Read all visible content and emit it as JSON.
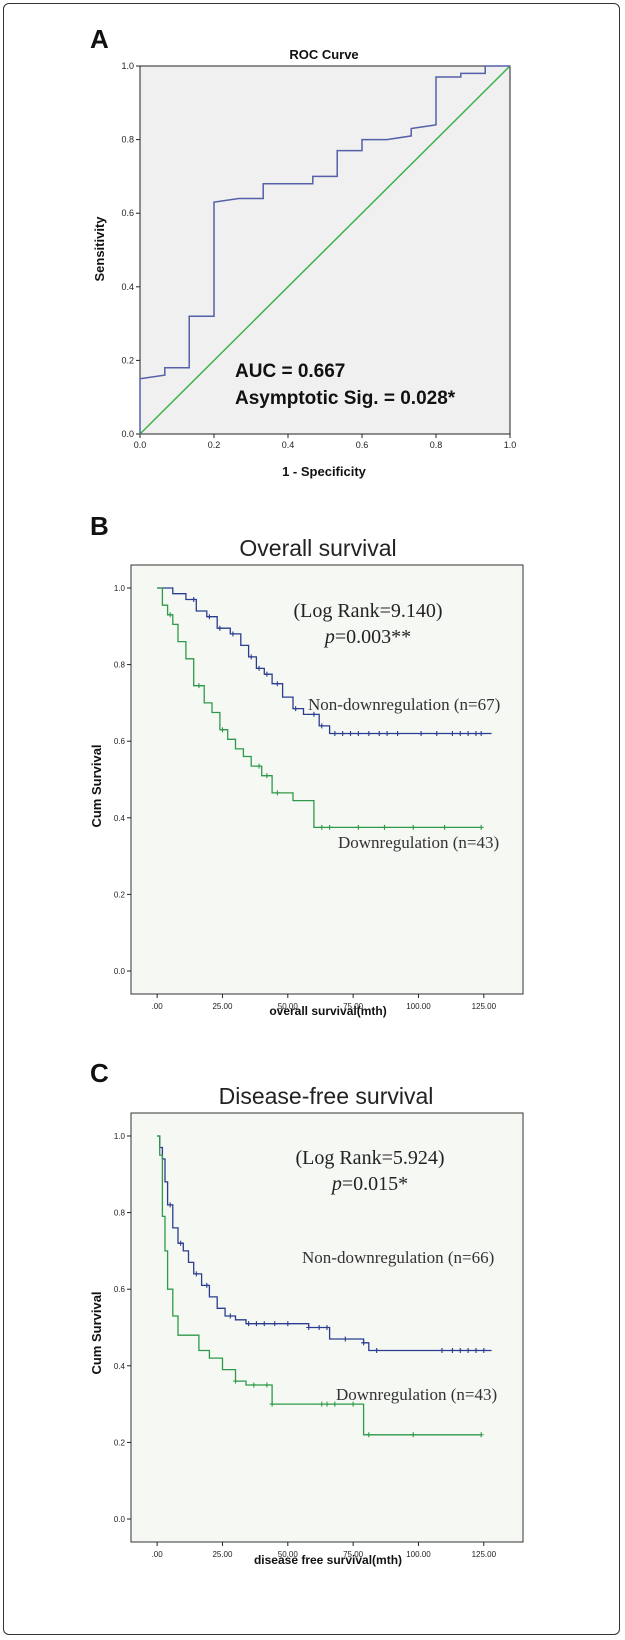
{
  "chart_data": [
    {
      "panel": "A",
      "type": "line",
      "title": "ROC Curve",
      "xlabel": "1 - Specificity",
      "ylabel": "Sensitivity",
      "xlim": [
        0,
        1
      ],
      "ylim": [
        0,
        1
      ],
      "xticks": [
        "0.0",
        "0.2",
        "0.4",
        "0.6",
        "0.8",
        "1.0"
      ],
      "yticks": [
        "0.0",
        "0.2",
        "0.4",
        "0.6",
        "0.8",
        "1.0"
      ],
      "annotations": [
        "AUC = 0.667",
        "Asymptotic Sig. = 0.028*"
      ],
      "colors": {
        "roc": "#5560a8",
        "reference": "#3cb34a",
        "plot_bg": "#f0f0f0"
      },
      "series": [
        {
          "x": [
            0,
            0,
            0.067,
            0.067,
            0.133,
            0.133,
            0.2,
            0.2,
            0.267,
            0.333,
            0.333,
            0.467,
            0.467,
            0.533,
            0.533,
            0.6,
            0.6,
            0.667,
            0.733,
            0.733,
            0.8,
            0.8,
            0.867,
            0.867,
            0.933,
            0.933,
            1
          ],
          "y": [
            0,
            0.15,
            0.16,
            0.18,
            0.18,
            0.32,
            0.32,
            0.63,
            0.64,
            0.64,
            0.68,
            0.68,
            0.7,
            0.7,
            0.77,
            0.77,
            0.8,
            0.8,
            0.81,
            0.83,
            0.84,
            0.97,
            0.97,
            0.98,
            0.98,
            1.0,
            1.0
          ]
        },
        {
          "x": [
            0,
            1
          ],
          "y": [
            0,
            1
          ]
        }
      ]
    },
    {
      "panel": "B",
      "type": "line",
      "title": "Overall survival",
      "xlabel": "overall survival(mth)",
      "ylabel": "Cum Survival",
      "xlim": [
        -10,
        140
      ],
      "ylim": [
        -0.06,
        1.06
      ],
      "xticks": [
        ".00",
        "25.00",
        "50.00",
        "75.00",
        "100.00",
        "125.00"
      ],
      "yticks": [
        "0.0",
        "0.2",
        "0.4",
        "0.6",
        "0.8",
        "1.0"
      ],
      "annotations": [
        "(Log Rank=9.140)",
        "p=0.003**"
      ],
      "series": [
        {
          "name": "Non-downregulation (n=67)",
          "color": "#2b3d8f",
          "x": [
            0,
            6,
            11,
            15,
            19,
            23,
            28,
            32,
            35,
            38,
            41,
            44,
            48,
            52,
            56,
            62,
            66,
            128
          ],
          "y": [
            1.0,
            0.985,
            0.97,
            0.94,
            0.925,
            0.895,
            0.88,
            0.85,
            0.82,
            0.79,
            0.775,
            0.75,
            0.715,
            0.685,
            0.67,
            0.64,
            0.62,
            0.62
          ],
          "censor_x": [
            14,
            20,
            24,
            29,
            36,
            39,
            42,
            46,
            53,
            60,
            63,
            68,
            71,
            74,
            77,
            81,
            85,
            88,
            92,
            101,
            107,
            113,
            116,
            119,
            122,
            124
          ]
        },
        {
          "name": "Downregulation (n=43)",
          "color": "#2e9a49",
          "x": [
            0,
            2,
            4,
            6,
            8,
            11,
            14,
            18,
            21,
            24,
            27,
            30,
            33,
            36,
            40,
            44,
            52,
            60,
            124
          ],
          "y": [
            1.0,
            0.955,
            0.93,
            0.905,
            0.86,
            0.815,
            0.745,
            0.7,
            0.675,
            0.63,
            0.605,
            0.58,
            0.56,
            0.535,
            0.51,
            0.465,
            0.445,
            0.375,
            0.375
          ],
          "censor_x": [
            5,
            16,
            25,
            39,
            42,
            46,
            63,
            66,
            77,
            87,
            98,
            110,
            124
          ]
        }
      ]
    },
    {
      "panel": "C",
      "type": "line",
      "title": "Disease-free survival",
      "xlabel": "disease free survival(mth)",
      "ylabel": "Cum Survival",
      "xlim": [
        -10,
        140
      ],
      "ylim": [
        -0.06,
        1.06
      ],
      "xticks": [
        ".00",
        "25.00",
        "50.00",
        "75.00",
        "100.00",
        "125.00"
      ],
      "yticks": [
        "0.0",
        "0.2",
        "0.4",
        "0.6",
        "0.8",
        "1.0"
      ],
      "annotations": [
        "(Log Rank=5.924)",
        "p=0.015*"
      ],
      "series": [
        {
          "name": "Non-downregulation (n=66)",
          "color": "#2b3d8f",
          "x": [
            0,
            1,
            2,
            3,
            4,
            6,
            8,
            10,
            12,
            14,
            17,
            20,
            23,
            26,
            30,
            34,
            58,
            66,
            79,
            81,
            128
          ],
          "y": [
            1.0,
            0.97,
            0.94,
            0.88,
            0.82,
            0.76,
            0.72,
            0.7,
            0.67,
            0.64,
            0.61,
            0.58,
            0.55,
            0.53,
            0.52,
            0.51,
            0.5,
            0.47,
            0.46,
            0.44,
            0.44
          ],
          "censor_x": [
            5,
            9,
            15,
            19,
            28,
            35,
            38,
            41,
            45,
            50,
            58,
            62,
            65,
            72,
            79,
            84,
            109,
            113,
            116,
            119,
            122,
            125
          ]
        },
        {
          "name": "Downregulation (n=43)",
          "color": "#2e9a49",
          "x": [
            0,
            1,
            2,
            3,
            4,
            6,
            8,
            10,
            16,
            20,
            25,
            30,
            34,
            44,
            78,
            79,
            124
          ],
          "y": [
            1.0,
            0.95,
            0.79,
            0.7,
            0.6,
            0.53,
            0.48,
            0.48,
            0.44,
            0.42,
            0.39,
            0.36,
            0.35,
            0.3,
            0.3,
            0.22,
            0.22
          ],
          "censor_x": [
            30,
            37,
            42,
            44,
            63,
            65,
            68,
            75,
            81,
            98,
            124
          ]
        }
      ]
    }
  ]
}
